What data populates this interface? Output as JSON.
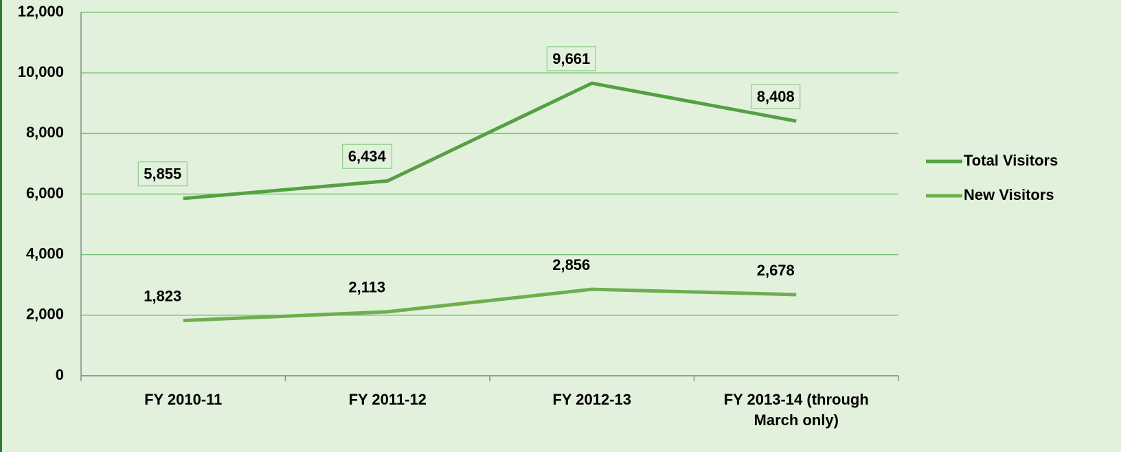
{
  "chart_data": {
    "type": "line",
    "categories": [
      "FY 2010-11",
      "FY 2011-12",
      "FY 2012-13",
      "FY 2013-14 (through March only)"
    ],
    "series": [
      {
        "name": "Total Visitors",
        "color": "#55a043",
        "values": [
          5855,
          6434,
          9661,
          8408
        ],
        "value_labels": [
          "5,855",
          "6,434",
          "9,661",
          "8,408"
        ]
      },
      {
        "name": "New Visitors",
        "color": "#6fae50",
        "values": [
          1823,
          2113,
          2856,
          2678
        ],
        "value_labels": [
          "1,823",
          "2,113",
          "2,856",
          "2,678"
        ]
      }
    ],
    "ylim": [
      0,
      12000
    ],
    "yticks": [
      0,
      {
        "value": 2000,
        "label": "2,000"
      },
      {
        "value": 4000,
        "label": "4,000"
      },
      {
        "value": 6000,
        "label": "6,000"
      },
      {
        "value": 8000,
        "label": "8,000"
      },
      {
        "value": 10000,
        "label": "10,000"
      },
      {
        "value": 12000,
        "label": "12,000"
      }
    ],
    "grid": true,
    "legend": "right"
  }
}
